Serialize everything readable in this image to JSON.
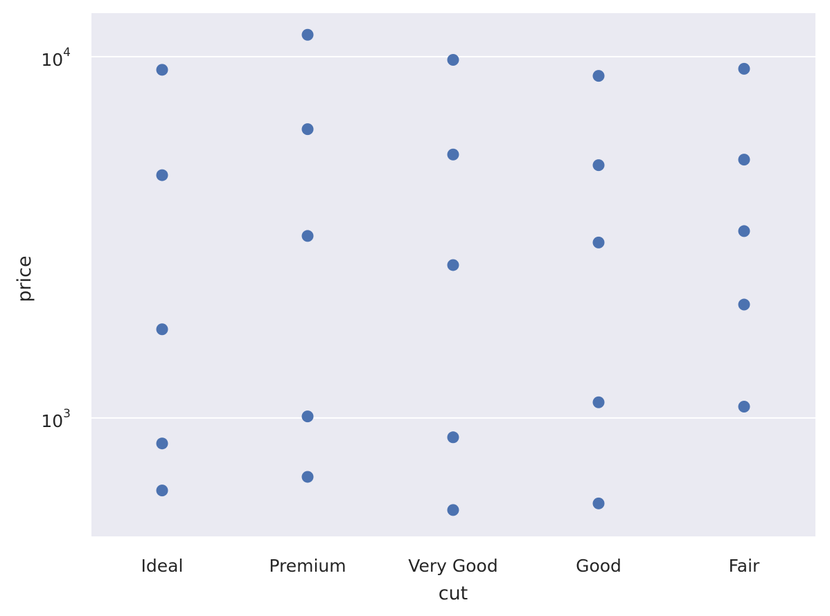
{
  "chart_data": {
    "type": "scatter",
    "title": "",
    "xlabel": "cut",
    "ylabel": "price",
    "yscale": "log",
    "ylim": [
      470,
      13200
    ],
    "grid": true,
    "legend": "none",
    "colors": {
      "background": "#eaeaf2",
      "grid": "#ffffff",
      "point": "#4c72b0",
      "text": "#262626"
    },
    "categories": [
      "Ideal",
      "Premium",
      "Very Good",
      "Good",
      "Fair"
    ],
    "yticks": [
      {
        "base": "10",
        "exp": "3",
        "value": 1000
      },
      {
        "base": "10",
        "exp": "4",
        "value": 10000
      }
    ],
    "series": [
      {
        "points": [
          {
            "x": "Ideal",
            "y": 9200
          },
          {
            "x": "Ideal",
            "y": 4700
          },
          {
            "x": "Ideal",
            "y": 1760
          },
          {
            "x": "Ideal",
            "y": 850
          },
          {
            "x": "Ideal",
            "y": 630
          },
          {
            "x": "Premium",
            "y": 11500
          },
          {
            "x": "Premium",
            "y": 6300
          },
          {
            "x": "Premium",
            "y": 3190
          },
          {
            "x": "Premium",
            "y": 1010
          },
          {
            "x": "Premium",
            "y": 687
          },
          {
            "x": "Very Good",
            "y": 9800
          },
          {
            "x": "Very Good",
            "y": 5360
          },
          {
            "x": "Very Good",
            "y": 2650
          },
          {
            "x": "Very Good",
            "y": 884
          },
          {
            "x": "Very Good",
            "y": 556
          },
          {
            "x": "Good",
            "y": 8850
          },
          {
            "x": "Good",
            "y": 5010
          },
          {
            "x": "Good",
            "y": 3060
          },
          {
            "x": "Good",
            "y": 1105
          },
          {
            "x": "Good",
            "y": 580
          },
          {
            "x": "Fair",
            "y": 9260
          },
          {
            "x": "Fair",
            "y": 5190
          },
          {
            "x": "Fair",
            "y": 3290
          },
          {
            "x": "Fair",
            "y": 2060
          },
          {
            "x": "Fair",
            "y": 1075
          }
        ]
      }
    ]
  }
}
